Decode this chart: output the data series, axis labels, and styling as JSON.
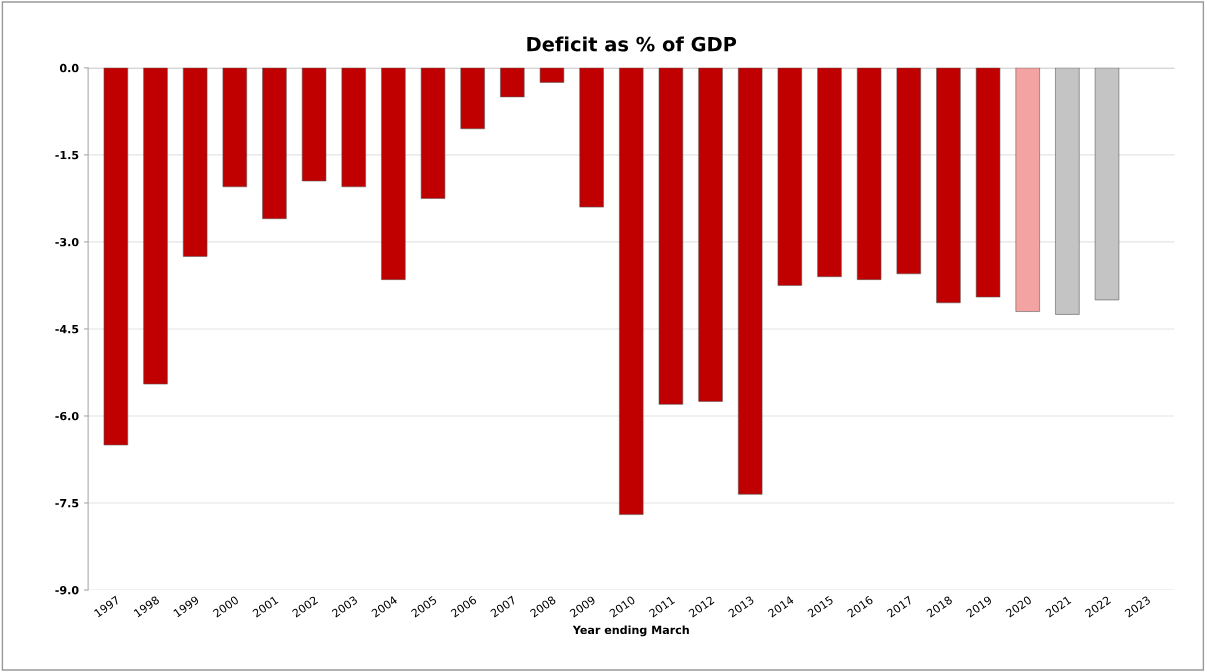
{
  "chart_data": {
    "type": "bar",
    "title": "Deficit as % of GDP",
    "xlabel": "Year ending March",
    "categories": [
      "1997",
      "1998",
      "1999",
      "2000",
      "2001",
      "2002",
      "2003",
      "2004",
      "2005",
      "2006",
      "2007",
      "2008",
      "2009",
      "2010",
      "2011",
      "2012",
      "2013",
      "2014",
      "2015",
      "2016",
      "2017",
      "2018",
      "2019",
      "2020",
      "2021",
      "2022",
      "2023"
    ],
    "values": [
      -6.5,
      -5.45,
      -3.25,
      -2.05,
      -2.6,
      -1.95,
      -2.05,
      -3.65,
      -2.25,
      -1.05,
      -0.5,
      -0.25,
      -2.4,
      -7.7,
      -5.8,
      -5.75,
      -7.35,
      -3.75,
      -3.6,
      -3.65,
      -3.55,
      -4.05,
      -3.95,
      -4.2,
      -4.25,
      -4.0,
      null
    ],
    "colors": [
      "#c00000",
      "#c00000",
      "#c00000",
      "#c00000",
      "#c00000",
      "#c00000",
      "#c00000",
      "#c00000",
      "#c00000",
      "#c00000",
      "#c00000",
      "#c00000",
      "#c00000",
      "#c00000",
      "#c00000",
      "#c00000",
      "#c00000",
      "#c00000",
      "#c00000",
      "#c00000",
      "#c00000",
      "#c00000",
      "#c00000",
      "#f4a3a3",
      "#c4c4c4",
      "#c4c4c4",
      "#c4c4c4"
    ],
    "ylim": [
      -9,
      0
    ],
    "yticks": [
      {
        "value": 0,
        "label": "0.0"
      },
      {
        "value": -1.5,
        "label": "-1.5"
      },
      {
        "value": -3,
        "label": "-3.0"
      },
      {
        "value": -4.5,
        "label": "-4.5"
      },
      {
        "value": -6,
        "label": "-6.0"
      },
      {
        "value": -7.5,
        "label": "-7.5"
      },
      {
        "value": -9,
        "label": "-9.0"
      }
    ],
    "grid": "y",
    "legend": false
  }
}
